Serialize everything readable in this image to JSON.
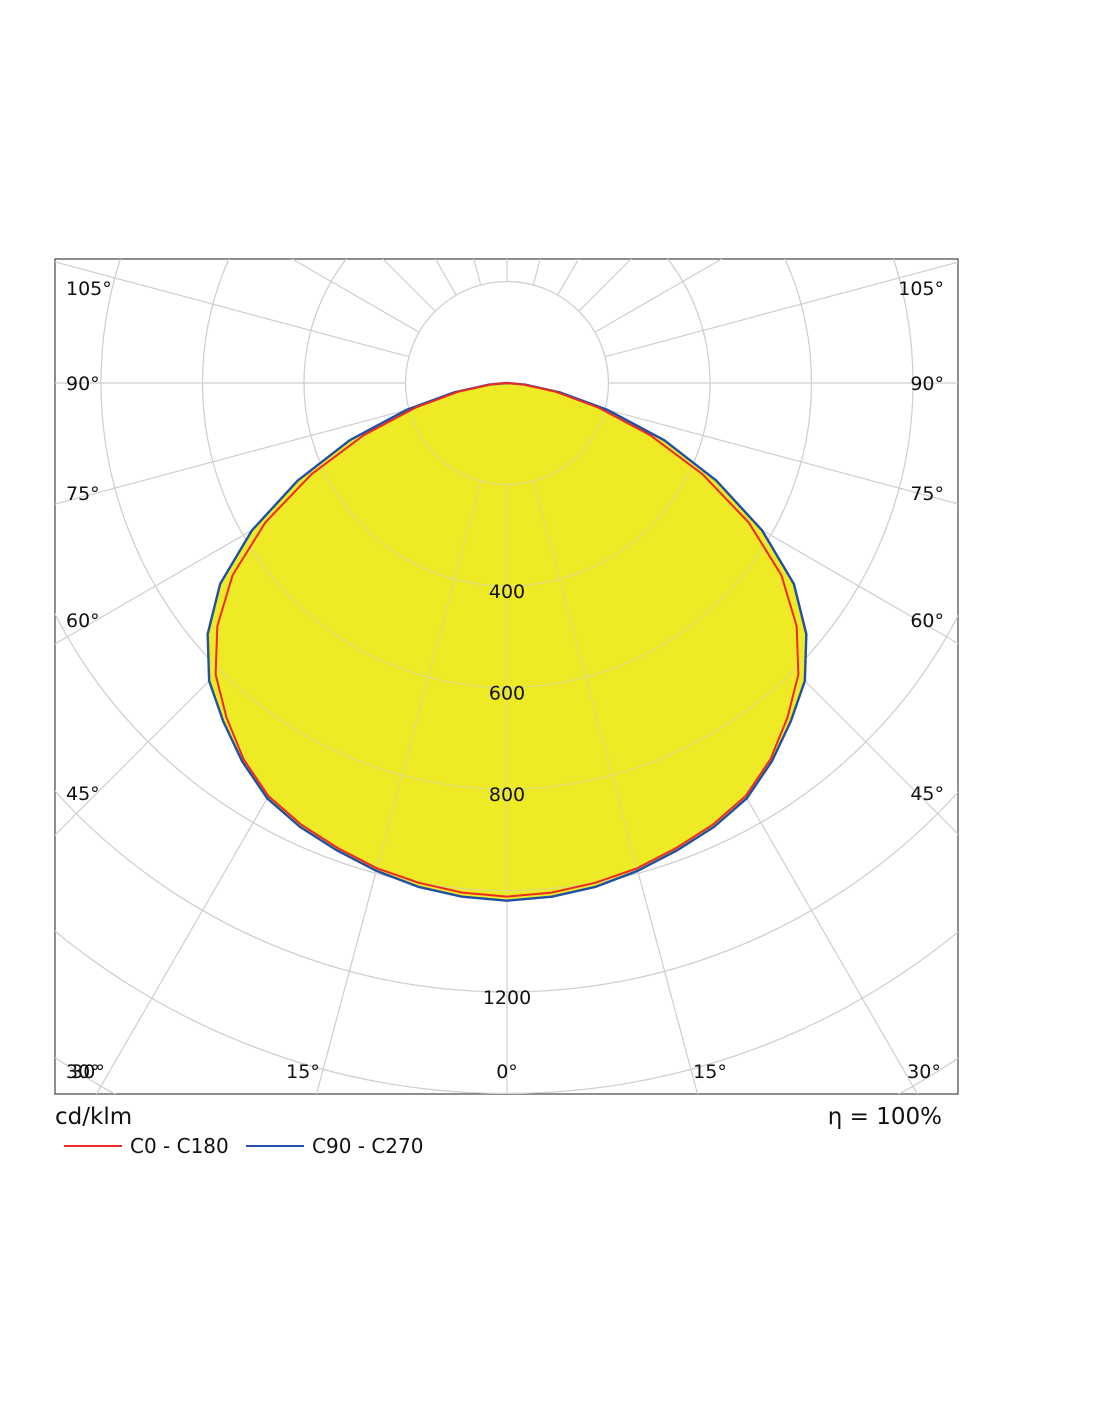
{
  "chart_data": {
    "type": "polar",
    "unit": "cd/klm",
    "efficiency": "η = 100%",
    "angle_ticks": [
      "0°",
      "15°",
      "30°",
      "45°",
      "60°",
      "75°",
      "90°",
      "105°"
    ],
    "angle_ticks_left": [
      "30°",
      "45°",
      "60°",
      "75°",
      "90°",
      "105°"
    ],
    "angle_ticks_right": [
      "15°",
      "30°",
      "45°",
      "60°",
      "75°",
      "90°",
      "105°"
    ],
    "radial_ticks": [
      "400",
      "600",
      "800",
      "1200"
    ],
    "rmax": 1200,
    "colors": {
      "c0": "#ee2a24",
      "c90": "#1f4fa6",
      "fill": "#eeea25",
      "grid": "#cfcfcf"
    },
    "series": [
      {
        "name": "C0 - C180",
        "angles": [
          0,
          5,
          10,
          15,
          20,
          25,
          30,
          35,
          40,
          45,
          50,
          55,
          60,
          65,
          70,
          75,
          80,
          85,
          90
        ],
        "values": [
          1012,
          1008,
          1000,
          990,
          975,
          960,
          940,
          905,
          860,
          812,
          745,
          660,
          550,
          425,
          300,
          185,
          95,
          30,
          0
        ]
      },
      {
        "name": "C90 - C270",
        "angles": [
          0,
          5,
          10,
          15,
          20,
          25,
          30,
          35,
          40,
          45,
          50,
          55,
          60,
          65,
          70,
          75,
          80,
          85,
          90
        ],
        "values": [
          1020,
          1016,
          1008,
          995,
          980,
          965,
          945,
          910,
          870,
          830,
          770,
          690,
          580,
          455,
          330,
          205,
          105,
          35,
          0
        ]
      }
    ]
  }
}
